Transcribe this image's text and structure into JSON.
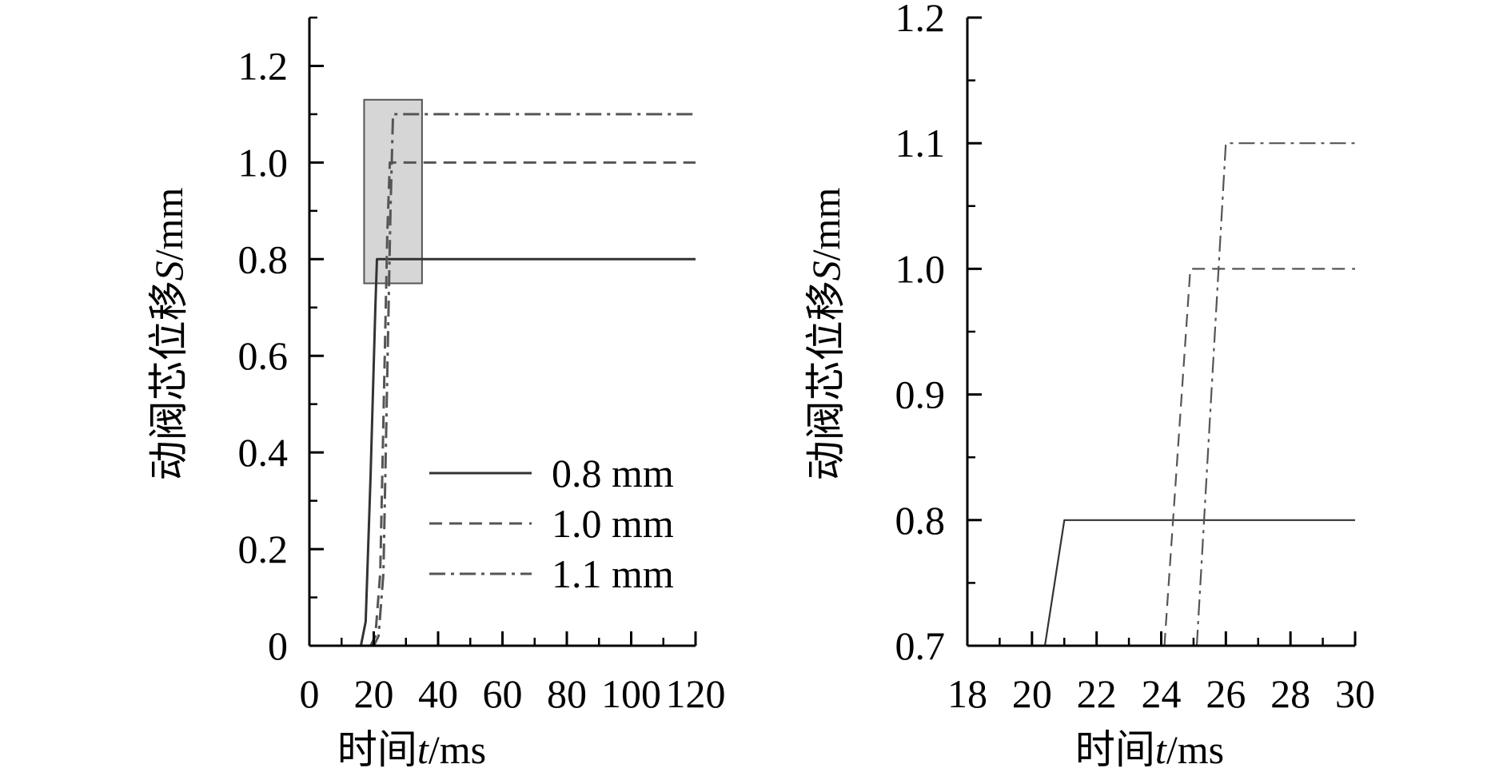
{
  "chart_data": [
    {
      "type": "line",
      "xlabel_prefix": "时间",
      "xlabel_var": "t",
      "xlabel_unit": "/ms",
      "ylabel_prefix": "动阀芯位移",
      "ylabel_var": "S",
      "ylabel_unit": "/mm",
      "xlim": [
        0,
        120
      ],
      "ylim": [
        0,
        1.3
      ],
      "xticks": [
        0,
        20,
        40,
        60,
        80,
        100,
        120
      ],
      "xtick_labels": [
        "0",
        "20",
        "40",
        "60",
        "80",
        "100",
        "120"
      ],
      "yticks": [
        0,
        0.2,
        0.4,
        0.6,
        0.8,
        1.0,
        1.2
      ],
      "ytick_labels": [
        "0",
        "0.2",
        "0.4",
        "0.6",
        "0.8",
        "1.0",
        "1.2"
      ],
      "legend_position": "bottom-right",
      "zoom_box": {
        "x": [
          17,
          35
        ],
        "y": [
          0.75,
          1.13
        ]
      },
      "series": [
        {
          "name": "0.8 mm",
          "style": "solid",
          "color": "#333333",
          "x": [
            0,
            16,
            17.5,
            19,
            20.5,
            21,
            120
          ],
          "y": [
            0,
            0,
            0.05,
            0.35,
            0.7,
            0.8,
            0.8
          ]
        },
        {
          "name": "1.0 mm",
          "style": "dashed",
          "color": "#555555",
          "x": [
            0,
            19,
            20.5,
            22,
            24.2,
            25,
            120
          ],
          "y": [
            0,
            0,
            0.02,
            0.15,
            0.85,
            1.0,
            1.0
          ]
        },
        {
          "name": "1.1 mm",
          "style": "dashdot",
          "color": "#555555",
          "x": [
            0,
            20,
            21.5,
            23,
            25.2,
            26,
            120
          ],
          "y": [
            0,
            0,
            0.02,
            0.15,
            0.9,
            1.1,
            1.1
          ]
        }
      ]
    },
    {
      "type": "line",
      "xlabel_prefix": "时间",
      "xlabel_var": "t",
      "xlabel_unit": "/ms",
      "ylabel_prefix": "动阀芯位移",
      "ylabel_var": "S",
      "ylabel_unit": "/mm",
      "xlim": [
        18,
        30
      ],
      "ylim": [
        0.7,
        1.2
      ],
      "xticks": [
        18,
        20,
        22,
        24,
        26,
        28,
        30
      ],
      "xtick_labels": [
        "18",
        "20",
        "22",
        "24",
        "26",
        "28",
        "30"
      ],
      "yticks": [
        0.7,
        0.8,
        0.9,
        1.0,
        1.1,
        1.2
      ],
      "ytick_labels": [
        "0.7",
        "0.8",
        "0.9",
        "1.0",
        "1.1",
        "1.2"
      ],
      "series": [
        {
          "name": "0.8 mm",
          "style": "solid",
          "color": "#333333",
          "x": [
            18,
            20.4,
            21,
            30
          ],
          "y": [
            0.7,
            0.7,
            0.8,
            0.8
          ]
        },
        {
          "name": "1.0 mm",
          "style": "dashed",
          "color": "#555555",
          "x": [
            24.1,
            24.9,
            25.2,
            30
          ],
          "y": [
            0.7,
            1.0,
            1.0,
            1.0
          ]
        },
        {
          "name": "1.1 mm",
          "style": "dashdot",
          "color": "#555555",
          "x": [
            25.1,
            26,
            26.3,
            30
          ],
          "y": [
            0.7,
            1.1,
            1.1,
            1.1
          ]
        }
      ]
    }
  ]
}
